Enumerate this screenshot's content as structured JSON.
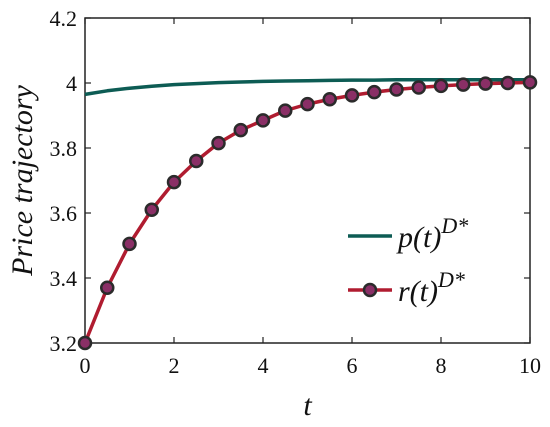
{
  "chart_data": {
    "type": "line",
    "xlabel": "t",
    "ylabel": "Price trajectory",
    "xlim": [
      0,
      10
    ],
    "ylim": [
      3.2,
      4.2
    ],
    "xticks": [
      "0",
      "2",
      "4",
      "6",
      "8",
      "10"
    ],
    "yticks": [
      "3.2",
      "3.4",
      "3.6",
      "3.8",
      "4",
      "4.2"
    ],
    "grid": false,
    "legend_position": "lower-right",
    "series": [
      {
        "name": "p(t)",
        "name_sup": "D*",
        "color": "#0d5c54",
        "marker": "none",
        "x": [
          0,
          0.5,
          1,
          1.5,
          2,
          2.5,
          3,
          3.5,
          4,
          4.5,
          5,
          5.5,
          6,
          6.5,
          7,
          7.5,
          8,
          8.5,
          9,
          9.5,
          10
        ],
        "y": [
          3.965,
          3.976,
          3.984,
          3.99,
          3.995,
          3.998,
          4.001,
          4.003,
          4.005,
          4.006,
          4.007,
          4.008,
          4.009,
          4.009,
          4.01,
          4.01,
          4.01,
          4.01,
          4.01,
          4.01,
          4.01
        ]
      },
      {
        "name": "r(t)",
        "name_sup": "D*",
        "color": "#b01c30",
        "marker": "circle",
        "marker_face": "#8a2f66",
        "marker_edge": "#2b2b2b",
        "x": [
          0,
          0.5,
          1,
          1.5,
          2,
          2.5,
          3,
          3.5,
          4,
          4.5,
          5,
          5.5,
          6,
          6.5,
          7,
          7.5,
          8,
          8.5,
          9,
          9.5,
          10
        ],
        "y": [
          3.2,
          3.37,
          3.505,
          3.61,
          3.695,
          3.76,
          3.815,
          3.855,
          3.885,
          3.915,
          3.935,
          3.95,
          3.962,
          3.972,
          3.98,
          3.986,
          3.991,
          3.995,
          3.998,
          4.0,
          4.002
        ]
      }
    ]
  }
}
